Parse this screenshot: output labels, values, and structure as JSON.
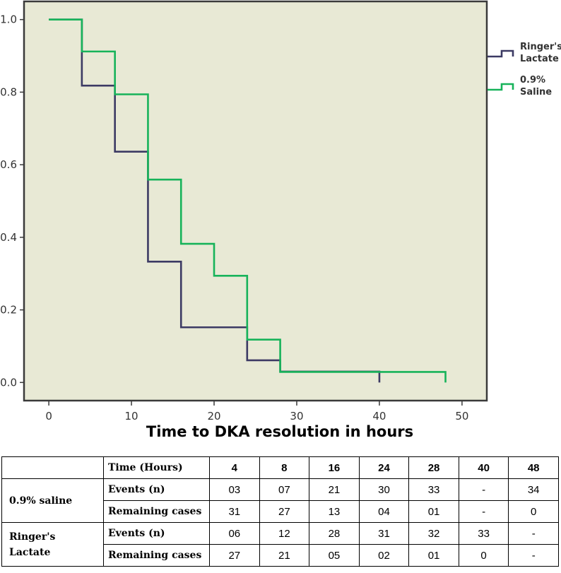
{
  "chart_data": {
    "type": "line",
    "step": true,
    "xlabel": "Time to DKA resolution in hours",
    "ylabel": "",
    "xlim": [
      -3,
      53
    ],
    "ylim": [
      -0.05,
      1.05
    ],
    "x_ticks": [
      0,
      10,
      20,
      30,
      40,
      50
    ],
    "y_ticks": [
      "0.0",
      "0.2",
      "0.4",
      "0.6",
      "0.8",
      "1.0"
    ],
    "legend_position": "right",
    "grid": false,
    "plot_background": "#e8e9d5",
    "series": [
      {
        "name": "Ringer's Lactate",
        "color": "#3c3a64",
        "x": [
          0,
          4,
          8,
          12,
          16,
          24,
          28,
          40
        ],
        "y": [
          1.0,
          0.818,
          0.636,
          0.333,
          0.152,
          0.061,
          0.03,
          0.0
        ]
      },
      {
        "name": "0.9% Saline",
        "color": "#17b35a",
        "x": [
          0,
          4,
          8,
          12,
          16,
          20,
          24,
          28,
          48
        ],
        "y": [
          1.0,
          0.912,
          0.794,
          0.559,
          0.382,
          0.294,
          0.118,
          0.029,
          0.0
        ]
      }
    ],
    "legend_labels": [
      {
        "line1": "Ringer's",
        "line2": "Lactate",
        "color": "#3c3a64"
      },
      {
        "line1": "0.9%",
        "line2": "Saline",
        "color": "#17b35a"
      }
    ]
  },
  "table": {
    "header_label": "Time (Hours)",
    "times": [
      "4",
      "8",
      "16",
      "24",
      "28",
      "40",
      "48"
    ],
    "groups": [
      {
        "name": "0.9% saline",
        "rows": [
          {
            "label": "Events (n)",
            "values": [
              "03",
              "07",
              "21",
              "30",
              "33",
              "-",
              "34"
            ]
          },
          {
            "label": "Remaining cases",
            "values": [
              "31",
              "27",
              "13",
              "04",
              "01",
              "-",
              "0"
            ]
          }
        ]
      },
      {
        "name": "Ringer's Lactate",
        "rows": [
          {
            "label": "Events (n)",
            "values": [
              "06",
              "12",
              "28",
              "31",
              "32",
              "33",
              "-"
            ]
          },
          {
            "label": "Remaining cases",
            "values": [
              "27",
              "21",
              "05",
              "02",
              "01",
              "0",
              "-"
            ]
          }
        ]
      }
    ]
  }
}
